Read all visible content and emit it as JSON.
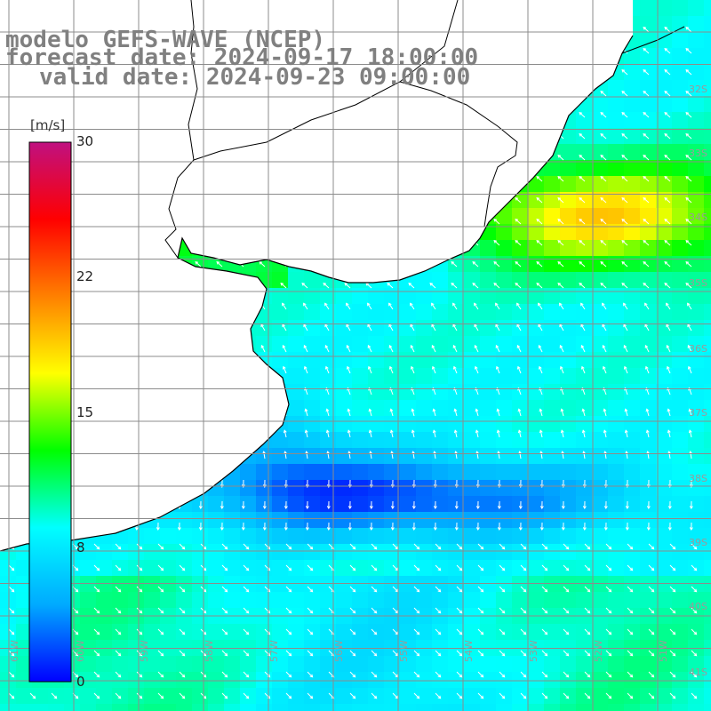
{
  "title": {
    "line1": "modelo GEFS-WAVE (NCEP)",
    "line2": "forecast date: 2024-09-17 18:00:00",
    "line3": "valid date: 2024-09-23 09:00:00"
  },
  "colorbar": {
    "unit": "[m/s]",
    "ticks": [
      "30",
      "22",
      "15",
      "8",
      "0"
    ],
    "min": 0,
    "max": 30,
    "colors": [
      "#0000ff",
      "#00aaff",
      "#00ffff",
      "#00ff00",
      "#ffff00",
      "#ff8000",
      "#ff0000",
      "#c01080"
    ]
  },
  "lat_labels": [
    "32S",
    "33S",
    "34S",
    "35S",
    "36S",
    "37S",
    "38S",
    "39S",
    "40S",
    "41S"
  ],
  "lon_labels": [
    "61W",
    "60W",
    "59W",
    "58W",
    "57W",
    "56W",
    "55W",
    "54W",
    "53W",
    "52W",
    "51W",
    "50W"
  ],
  "colors": {
    "land": "#ffffff",
    "coast": "#000000",
    "grid": "#8c8c8c",
    "arrow": "#ffffff"
  }
}
